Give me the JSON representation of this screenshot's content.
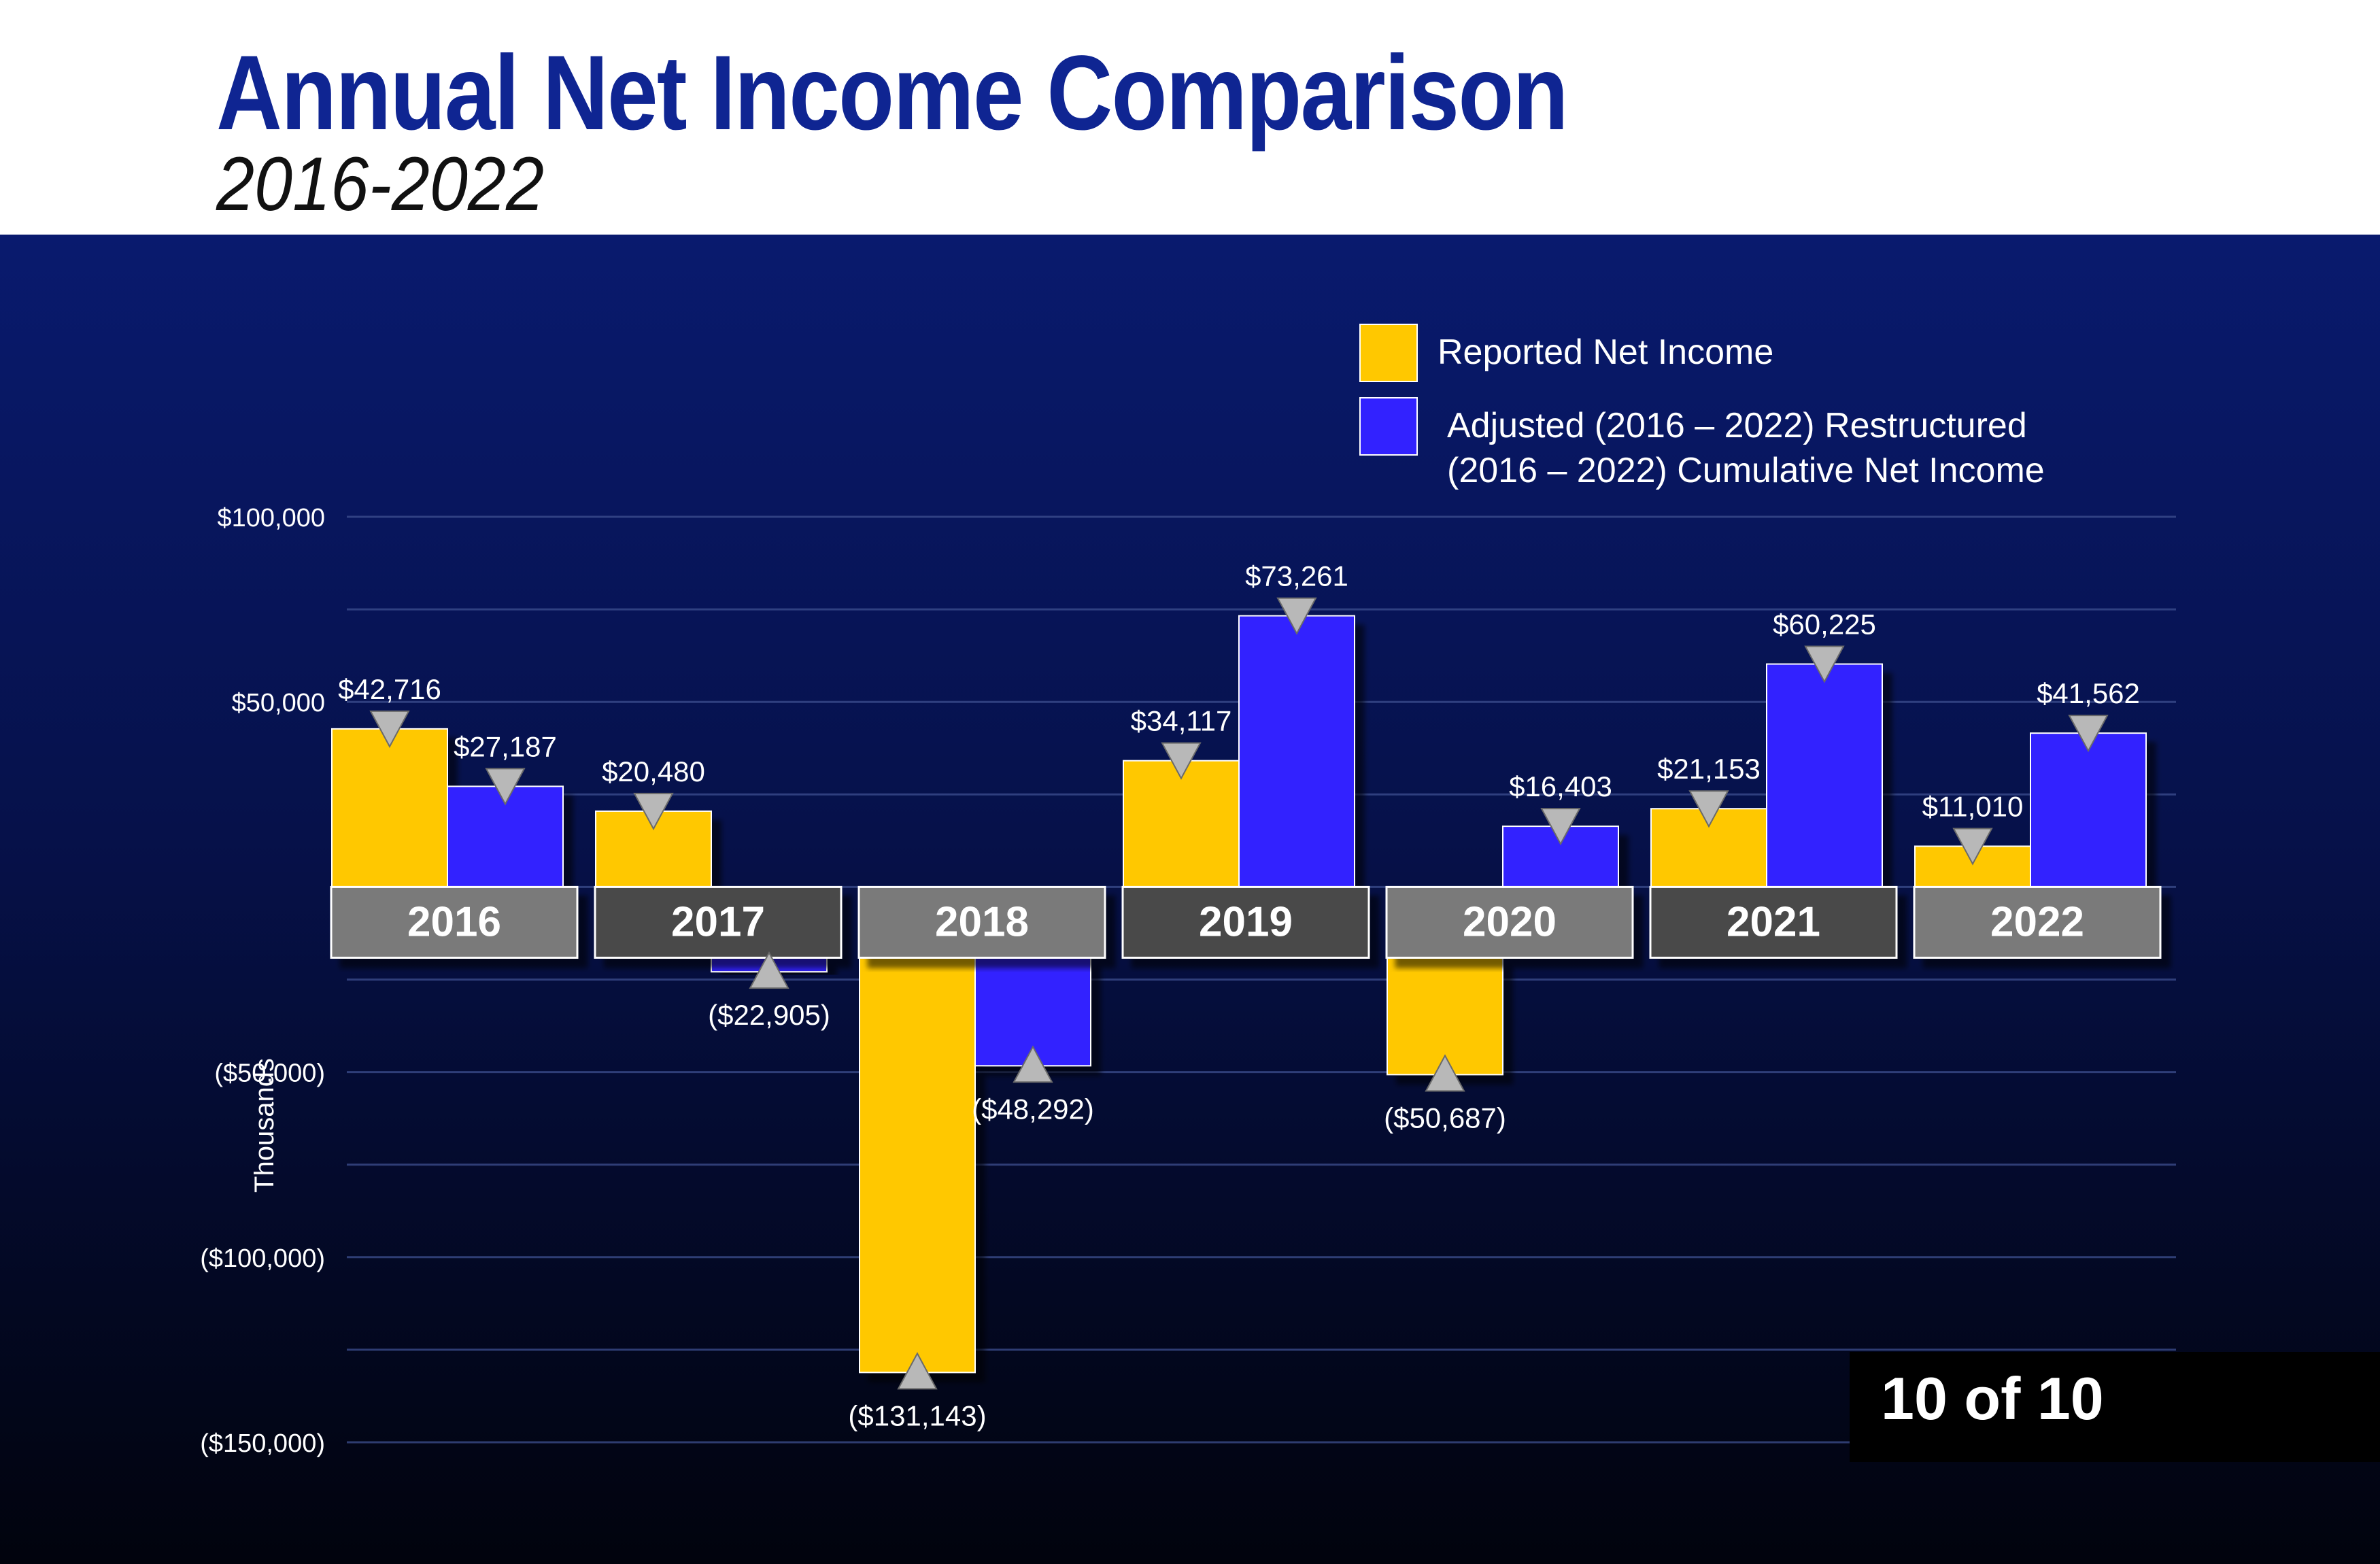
{
  "title": "Annual Net Income Comparison",
  "subtitle": "2016-2022",
  "page_counter": "10 of 10",
  "colors": {
    "reported": "#ffc800",
    "adjusted": "#3222ff",
    "title": "#0f2592",
    "year_box_light": "#7a7a7a",
    "year_box_dark": "#4a4a4a"
  },
  "chart_data": {
    "type": "bar",
    "title": "",
    "xlabel": "",
    "ylabel": "Thousands",
    "ylim": [
      -150000,
      100000
    ],
    "y_ticks": [
      {
        "value": 100000,
        "label": "$100,000"
      },
      {
        "value": 50000,
        "label": "$50,000"
      },
      {
        "value": -50000,
        "label": "($50,000)"
      },
      {
        "value": -100000,
        "label": "($100,000)"
      },
      {
        "value": -150000,
        "label": "($150,000)"
      }
    ],
    "grid": true,
    "legend_position": "top-right",
    "categories": [
      "2016",
      "2017",
      "2018",
      "2019",
      "2020",
      "2021",
      "2022"
    ],
    "series": [
      {
        "name": "Reported Net Income",
        "legend_lines": [
          "Reported Net Income"
        ],
        "color": "#ffc800",
        "values": [
          42716,
          20480,
          -131143,
          34117,
          -50687,
          21153,
          11010
        ],
        "labels": [
          "$42,716",
          "$20,480",
          "($131,143)",
          "$34,117",
          "($50,687)",
          "$21,153",
          "$11,010"
        ]
      },
      {
        "name": "Adjusted (2016 – 2022) Restructured (2016 – 2022) Cumulative Net Income",
        "legend_lines": [
          "Adjusted (2016 – 2022)  Restructured",
          "(2016 – 2022) Cumulative Net Income"
        ],
        "color": "#3222ff",
        "values": [
          27187,
          -22905,
          -48292,
          73261,
          16403,
          60225,
          41562
        ],
        "labels": [
          "$27,187",
          "($22,905)",
          "($48,292)",
          "$73,261",
          "$16,403",
          "$60,225",
          "$41,562"
        ]
      }
    ]
  }
}
